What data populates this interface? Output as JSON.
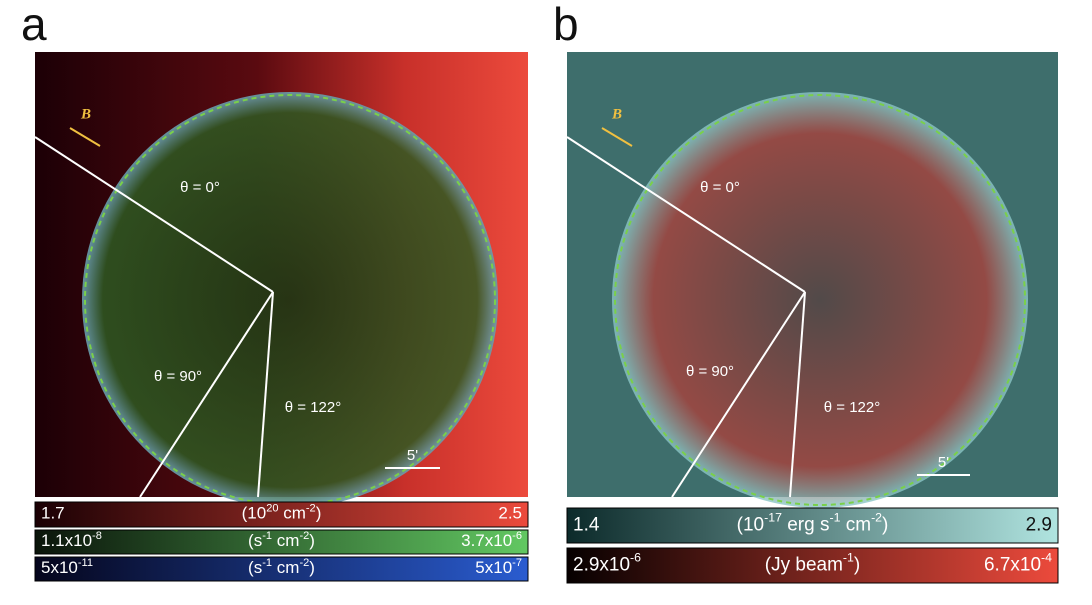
{
  "panels": [
    {
      "label": "a",
      "field_label": "B",
      "angles": [
        "θ = 0°",
        "θ = 90°",
        "θ = 122°"
      ],
      "scale_bar": "5'",
      "colorbars": [
        {
          "min": [
            "1.7"
          ],
          "unit": [
            "(10",
            "20",
            " cm",
            "-2",
            ")"
          ],
          "max": [
            "2.5"
          ]
        },
        {
          "min": [
            "1.1x10",
            "-8"
          ],
          "unit": [
            "(s",
            "-1",
            " cm",
            "-2",
            ")"
          ],
          "max": [
            "3.7x10",
            "-6"
          ]
        },
        {
          "min": [
            "5x10",
            "-11"
          ],
          "unit": [
            "(s",
            "-1",
            " cm",
            "-2",
            ")"
          ],
          "max": [
            "5x10",
            "-7"
          ]
        }
      ]
    },
    {
      "label": "b",
      "field_label": "B",
      "angles": [
        "θ = 0°",
        "θ = 90°",
        "θ = 122°"
      ],
      "scale_bar": "5'",
      "colorbars": [
        {
          "min": [
            "1.4"
          ],
          "unit": [
            "(10",
            "-17",
            " erg s",
            "-1",
            " cm",
            "-2",
            ")"
          ],
          "max": [
            "2.9"
          ]
        },
        {
          "min": [
            "2.9x10",
            "-6"
          ],
          "unit": [
            "(Jy beam",
            "-1",
            ")"
          ],
          "max": [
            "6.7x10",
            "-4"
          ]
        }
      ]
    }
  ]
}
